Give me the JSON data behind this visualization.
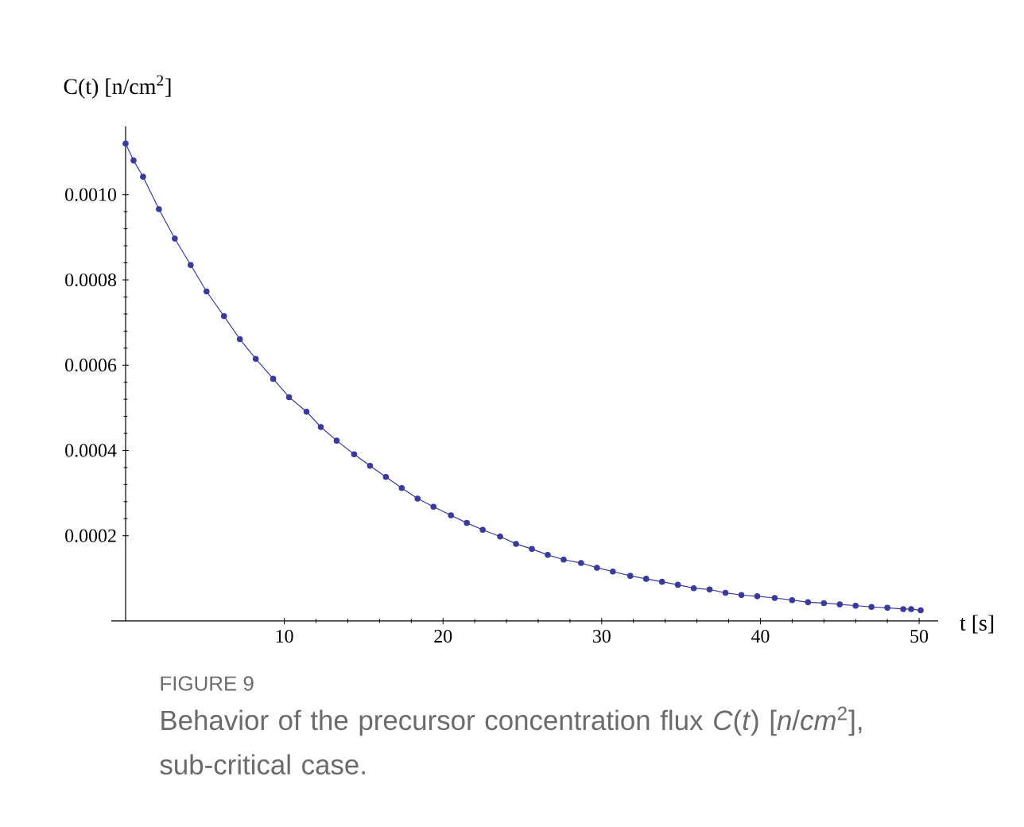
{
  "chart_data": {
    "type": "line",
    "xlabel": "t [s]",
    "ylabel": "C(t) [n/cm$^{2}$]",
    "x": [
      0,
      0.5,
      1.1,
      2.1,
      3.1,
      4.1,
      5.1,
      6.2,
      7.2,
      8.2,
      9.3,
      10.3,
      11.4,
      12.3,
      13.3,
      14.4,
      15.4,
      16.4,
      17.4,
      18.4,
      19.4,
      20.5,
      21.5,
      22.5,
      23.6,
      24.6,
      25.6,
      26.6,
      27.6,
      28.7,
      29.7,
      30.7,
      31.8,
      32.8,
      33.8,
      34.8,
      35.8,
      36.8,
      37.8,
      38.8,
      39.8,
      40.9,
      42,
      43,
      44,
      45,
      46,
      47,
      48,
      49,
      49.5,
      50.1
    ],
    "values": [
      0.00112,
      0.00108,
      0.001042,
      0.000966,
      0.000897,
      0.000835,
      0.000773,
      0.000715,
      0.000661,
      0.000615,
      0.000568,
      0.000525,
      0.000491,
      0.000455,
      0.000423,
      0.000391,
      0.000364,
      0.000338,
      0.000312,
      0.000287,
      0.000268,
      0.000248,
      0.00023,
      0.000214,
      0.000198,
      0.000181,
      0.000169,
      0.000155,
      0.000144,
      0.000136,
      0.000125,
      0.000116,
      0.000106,
      9.9e-05,
      9.2e-05,
      8.5e-05,
      7.7e-05,
      7.4e-05,
      6.6e-05,
      6.1e-05,
      5.8e-05,
      5.4e-05,
      4.9e-05,
      4.4e-05,
      4.2e-05,
      3.9e-05,
      3.6e-05,
      3.3e-05,
      3.1e-05,
      2.8e-05,
      2.8e-05,
      2.5e-05
    ],
    "color": "#3a3a9c",
    "xlim": [
      -0.9,
      51.2
    ],
    "ylim": [
      0,
      0.00116
    ],
    "xticks": [
      10,
      20,
      30,
      40,
      50
    ],
    "yticks": [
      0.0002,
      0.0004,
      0.0006,
      0.0008,
      {
        "value": 0.001,
        "label": "0.0010"
      }
    ],
    "marker": "circle",
    "line_style": "solid",
    "grid": false,
    "annotations": [
      "FIGURE 9",
      "Behavior of the precursor concentration flux *C*(*t*) [*n*/*cm*$^{2}$], sub-critical case."
    ]
  }
}
